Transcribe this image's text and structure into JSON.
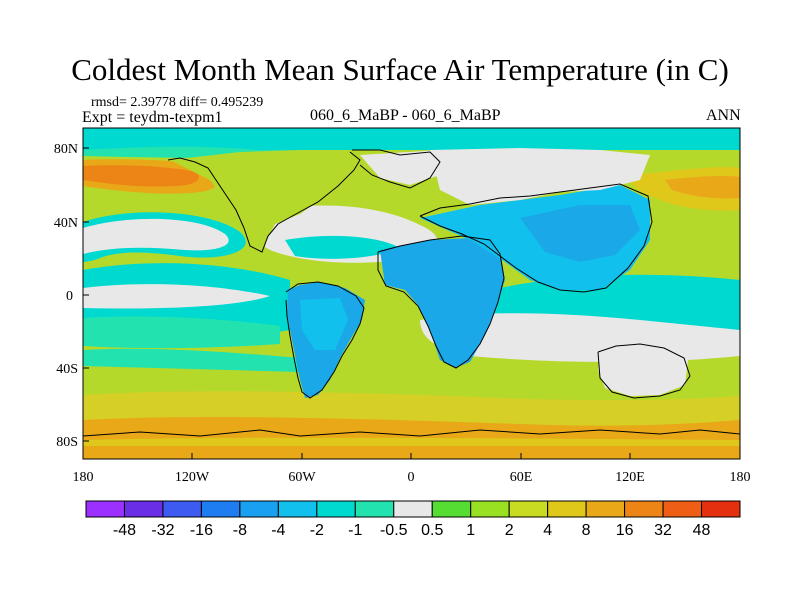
{
  "title": "Coldest Month Mean Surface Air Temperature (in C)",
  "stats_text": "rmsd= 2.39778 diff= 0.495239",
  "expt_text": "Expt = teydm-texpm1",
  "center_text": "060_6_MaBP - 060_6_MaBP",
  "season_text": "ANN",
  "lat_labels": [
    "80N",
    "40N",
    "0",
    "40S",
    "80S"
  ],
  "lon_labels": [
    "180",
    "120W",
    "60W",
    "0",
    "60E",
    "120E",
    "180"
  ],
  "colorbar": {
    "labels": [
      "-48",
      "-32",
      "-16",
      "-8",
      "-4",
      "-2",
      "-1",
      "-0.5",
      "0.5",
      "1",
      "2",
      "4",
      "8",
      "16",
      "32",
      "48"
    ],
    "colors": [
      "#9b30ff",
      "#6a2ee6",
      "#3d5bf0",
      "#1e7df0",
      "#1aa0f0",
      "#12c0ee",
      "#00d9d0",
      "#22e3b0",
      "#e8e8e8",
      "#55dd33",
      "#99e022",
      "#c8dc22",
      "#e0c81a",
      "#e8a818",
      "#ec8416",
      "#ee5e14",
      "#e53010"
    ]
  },
  "colors": {
    "ocean_green": "#b5d92a",
    "ocean_cyan": "#00d9d0",
    "ocean_white": "#e8e8e8",
    "ocean_orange": "#eda024",
    "ocean_yellow": "#d6cf26",
    "land_blue": "#1aa8e8",
    "land_teal": "#12c0ee"
  }
}
